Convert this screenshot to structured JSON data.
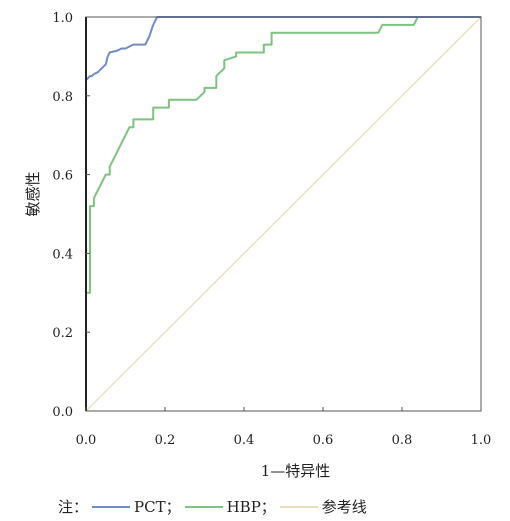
{
  "chart_data": {
    "type": "line",
    "xlabel": "1—特异性",
    "ylabel": "敏感性",
    "xlim": [
      0,
      1
    ],
    "ylim": [
      0,
      1
    ],
    "x_ticks": [
      "0.0",
      "0.2",
      "0.4",
      "0.6",
      "0.8",
      "1.0"
    ],
    "y_ticks": [
      "0.0",
      "0.2",
      "0.4",
      "0.6",
      "0.8",
      "1.0"
    ],
    "grid": false,
    "legend_position": "bottom",
    "series": [
      {
        "name": "PCT",
        "color": "#6f8cc7",
        "x": [
          0,
          0,
          0.005,
          0.01,
          0.015,
          0.02,
          0.03,
          0.04,
          0.05,
          0.055,
          0.06,
          0.08,
          0.09,
          0.1,
          0.11,
          0.12,
          0.13,
          0.15,
          0.16,
          0.17,
          0.18,
          1
        ],
        "y": [
          0,
          0.84,
          0.845,
          0.85,
          0.85,
          0.855,
          0.86,
          0.87,
          0.88,
          0.9,
          0.91,
          0.915,
          0.92,
          0.92,
          0.925,
          0.93,
          0.93,
          0.93,
          0.95,
          0.98,
          1,
          1
        ]
      },
      {
        "name": "HBP",
        "color": "#7cc47f",
        "x": [
          0,
          0,
          0.01,
          0.01,
          0.02,
          0.02,
          0.03,
          0.04,
          0.05,
          0.06,
          0.06,
          0.07,
          0.08,
          0.09,
          0.1,
          0.11,
          0.12,
          0.12,
          0.17,
          0.17,
          0.21,
          0.21,
          0.28,
          0.3,
          0.3,
          0.33,
          0.33,
          0.35,
          0.35,
          0.38,
          0.38,
          0.45,
          0.45,
          0.47,
          0.47,
          0.74,
          0.75,
          0.83,
          0.84,
          1
        ],
        "y": [
          0,
          0.3,
          0.3,
          0.52,
          0.52,
          0.54,
          0.56,
          0.58,
          0.6,
          0.6,
          0.62,
          0.64,
          0.66,
          0.68,
          0.7,
          0.72,
          0.72,
          0.74,
          0.74,
          0.77,
          0.77,
          0.79,
          0.79,
          0.81,
          0.82,
          0.82,
          0.85,
          0.87,
          0.89,
          0.9,
          0.91,
          0.91,
          0.93,
          0.93,
          0.96,
          0.96,
          0.98,
          0.98,
          1,
          1
        ]
      },
      {
        "name": "参考线",
        "color": "#e6e0b8",
        "x": [
          0,
          1
        ],
        "y": [
          0,
          1
        ]
      }
    ]
  },
  "legend": {
    "prefix": "注：",
    "items": [
      {
        "label": "PCT；",
        "color": "#6f8cc7"
      },
      {
        "label": "HBP；",
        "color": "#7cc47f"
      },
      {
        "label": "参考线",
        "color": "#e6e0b8"
      }
    ]
  }
}
